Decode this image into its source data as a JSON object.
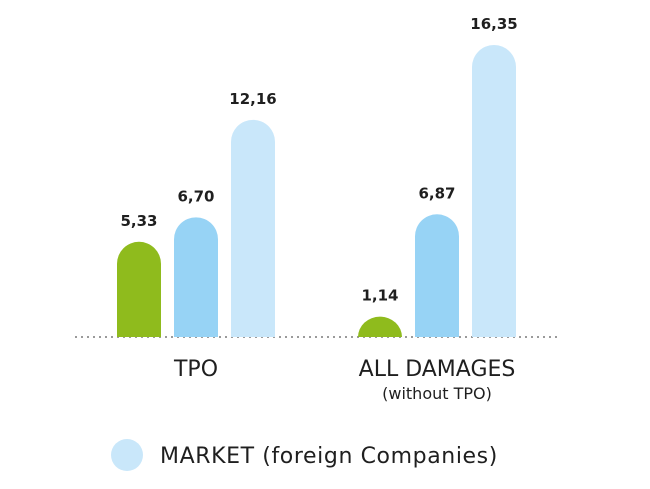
{
  "chart_data": {
    "type": "bar",
    "title": "",
    "xlabel": "",
    "ylabel": "",
    "categories": [
      "TPO",
      "ALL DAMAGES"
    ],
    "category_sublabels": [
      "",
      "(without TPO)"
    ],
    "ylim": [
      0,
      16.35
    ],
    "grid": false,
    "legend_position": "bottom",
    "series": [
      {
        "values": [
          5.33,
          1.14
        ],
        "labels": [
          "5,33",
          "1,14"
        ],
        "color": "#8fbb1d"
      },
      {
        "values": [
          6.7,
          6.87
        ],
        "labels": [
          "6,70",
          "6,87"
        ],
        "color": "#97d3f5"
      },
      {
        "name": "MARKET (foreign Companies)",
        "values": [
          12.16,
          16.35
        ],
        "labels": [
          "12,16",
          "16,35"
        ],
        "color": "#c9e7fa"
      }
    ]
  }
}
